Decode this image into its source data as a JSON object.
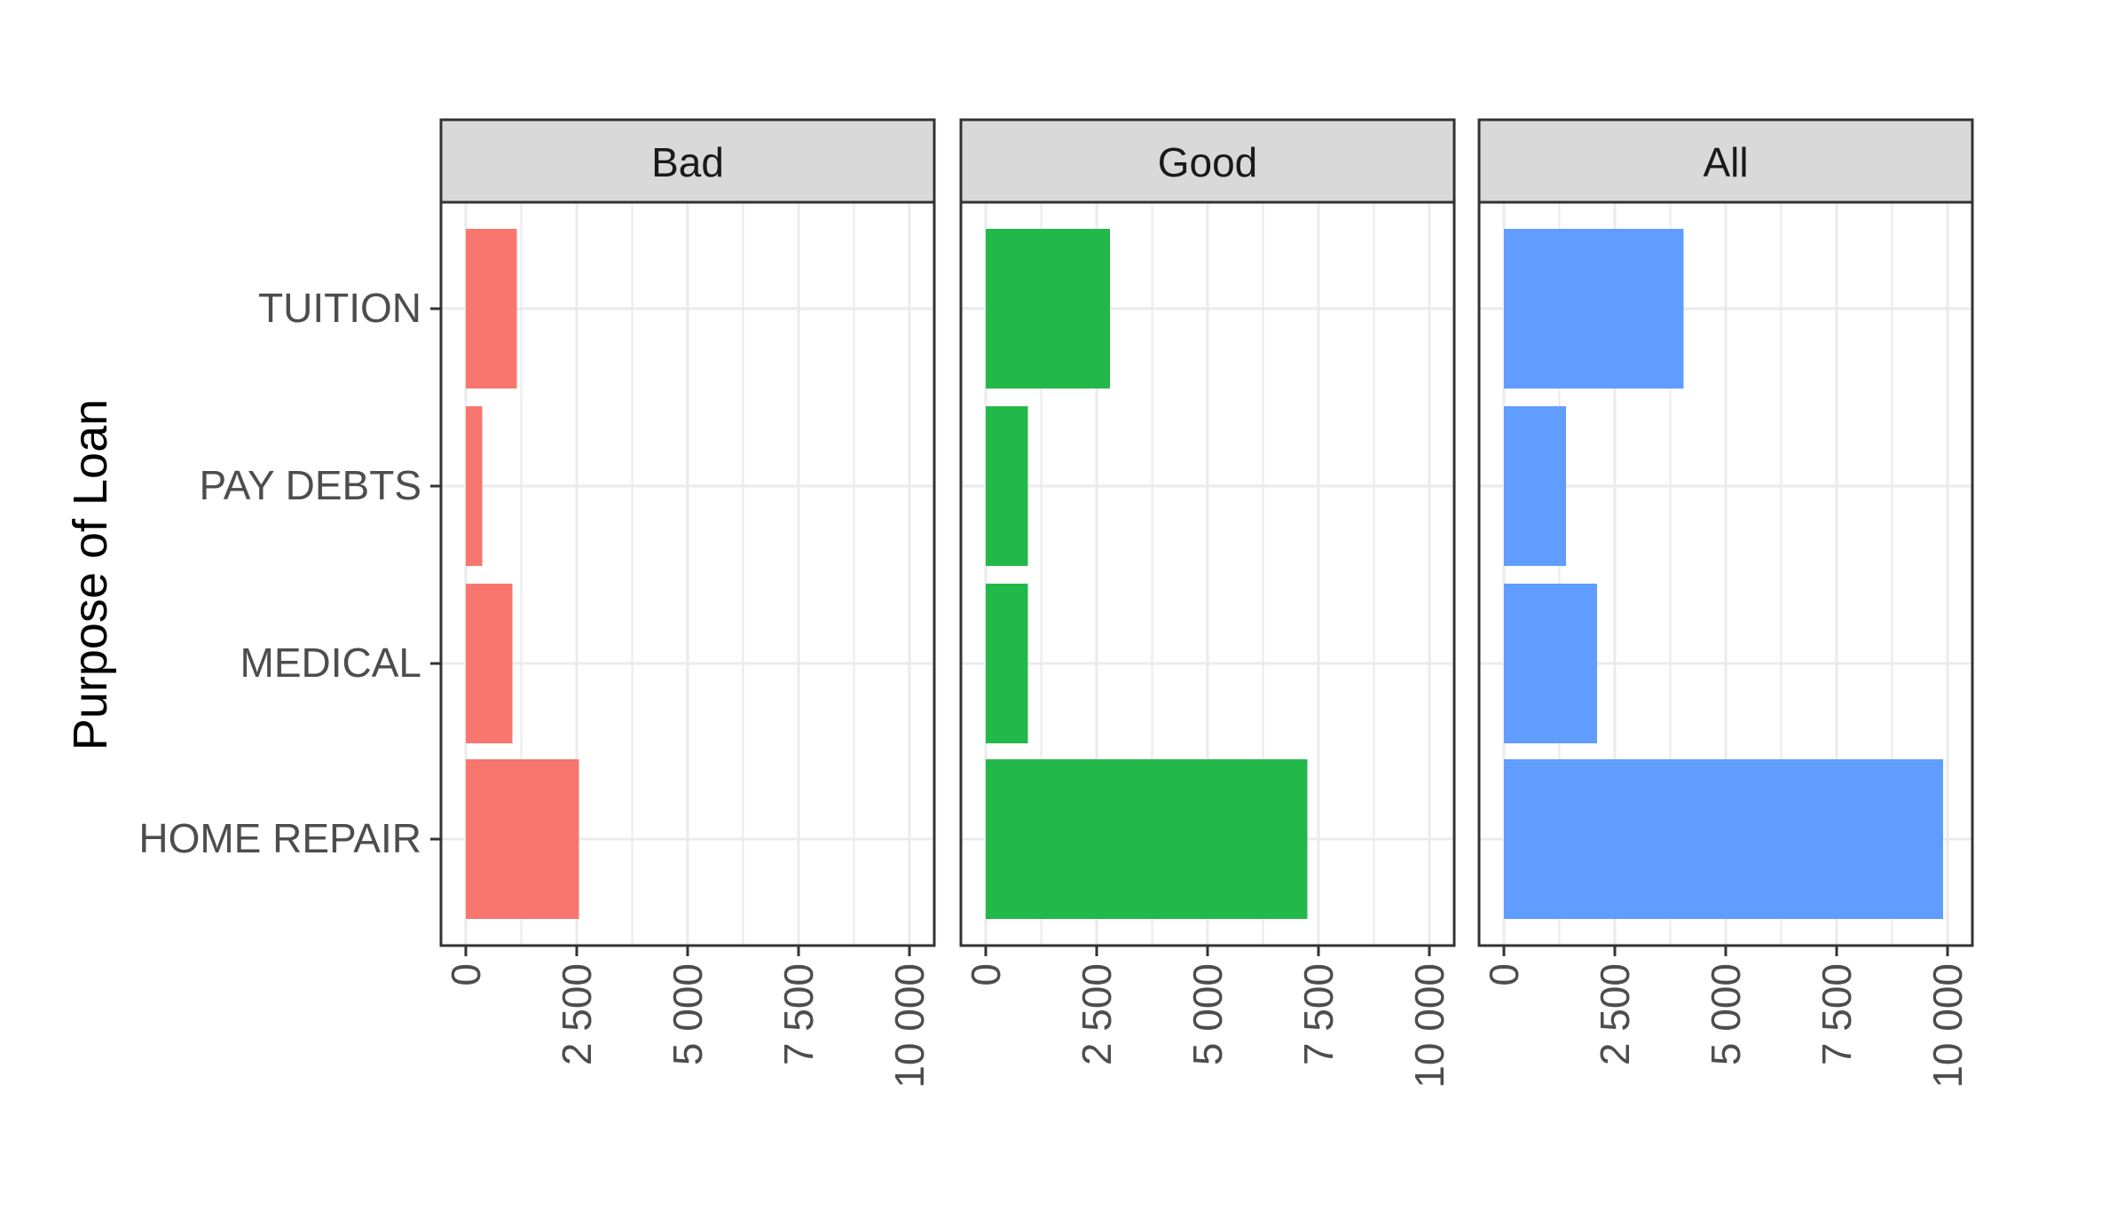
{
  "chart_data": {
    "type": "bar",
    "orientation": "horizontal",
    "ylabel": "Purpose of Loan",
    "xlabel": "",
    "categories": [
      "TUITION",
      "PAY DEBTS",
      "MEDICAL",
      "HOME REPAIR"
    ],
    "xlim": [
      0,
      10000
    ],
    "xticks": [
      0,
      2500,
      5000,
      7500,
      10000
    ],
    "xtick_labels": [
      "0",
      "2 500",
      "5 000",
      "7 500",
      "10 000"
    ],
    "grid": true,
    "legend": "none",
    "panels": [
      {
        "name": "Bad",
        "color": "#F8766D",
        "values": [
          1150,
          370,
          1050,
          2550
        ]
      },
      {
        "name": "Good",
        "color": "#22B84A",
        "values": [
          2800,
          950,
          950,
          7250
        ]
      },
      {
        "name": "All",
        "color": "#619CFF",
        "values": [
          4050,
          1400,
          2100,
          9900
        ]
      }
    ]
  }
}
